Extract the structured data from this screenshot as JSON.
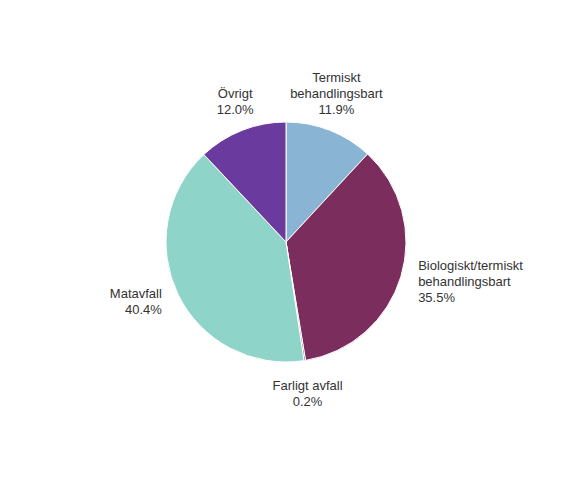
{
  "chart_data": {
    "type": "pie",
    "categories": [
      "Termiskt\nbehandlingsbart",
      "Biologiskt/termiskt\nbehandlingsbart",
      "Farligt avfall",
      "Matavfall",
      "Övrigt"
    ],
    "values": [
      11.9,
      35.5,
      0.2,
      40.4,
      12.0
    ],
    "value_labels": [
      "11.9%",
      "35.5%",
      "0.2%",
      "40.4%",
      "12.0%"
    ],
    "colors": [
      "#8ab4d4",
      "#7b2d5e",
      "#7b2d5e",
      "#8fd4c8",
      "#6b3a9e"
    ]
  }
}
